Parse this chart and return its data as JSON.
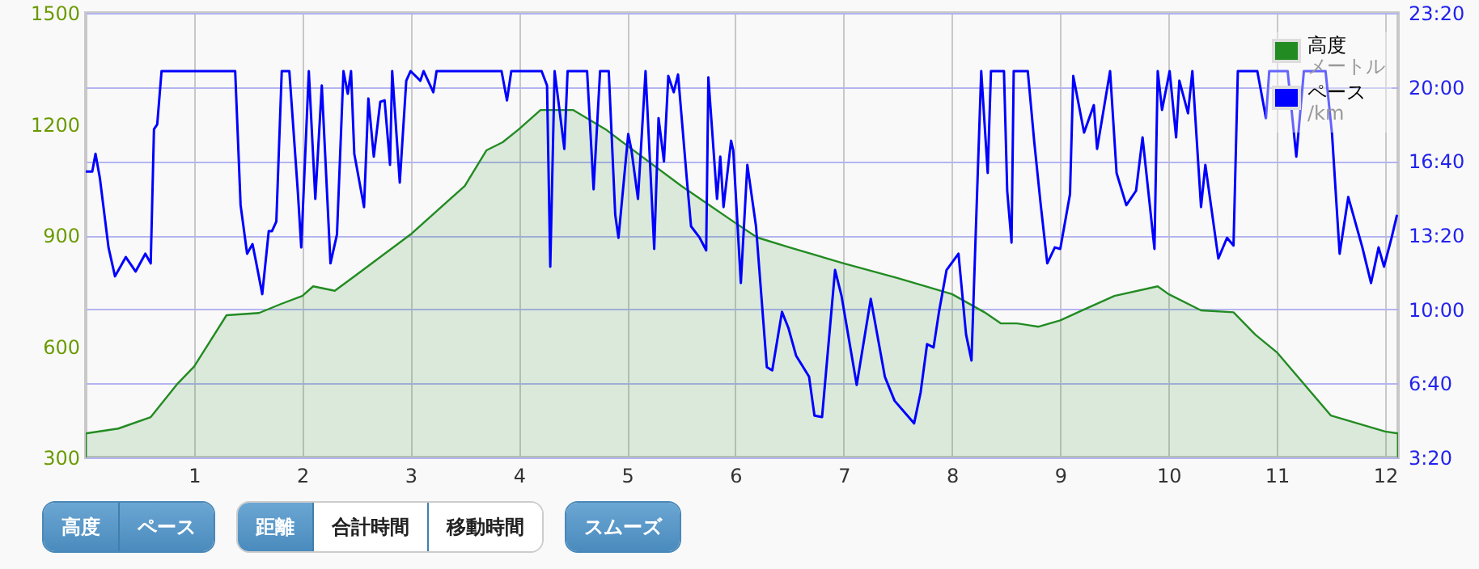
{
  "chart_data": {
    "type": "area",
    "xlim": [
      0,
      12.12
    ],
    "xticks": [
      1,
      2,
      3,
      4,
      5,
      6,
      7,
      8,
      9,
      10,
      11,
      12
    ],
    "ylim": [
      300,
      1500
    ],
    "yticks": [
      300,
      600,
      900,
      1200,
      1500
    ],
    "y2lim": [
      200,
      1400
    ],
    "y2ticks": [
      {
        "value": 200,
        "label": "3:20"
      },
      {
        "value": 400,
        "label": "6:40"
      },
      {
        "value": 600,
        "label": "10:00"
      },
      {
        "value": 800,
        "label": "13:20"
      },
      {
        "value": 1000,
        "label": "16:40"
      },
      {
        "value": 1200,
        "label": "20:00"
      },
      {
        "value": 1400,
        "label": "23:20"
      }
    ],
    "grid": true,
    "legend": "top right",
    "marker": "none",
    "annotations": [
      "高度",
      "ペース",
      "距離",
      "合計時間",
      "移動時間",
      "スムーズ",
      "メートル",
      "/km"
    ],
    "series": [
      {
        "name": "高度",
        "color": "#228b22",
        "x": [
          0,
          0.3,
          0.6,
          0.85,
          1.0,
          1.3,
          1.6,
          1.8,
          2.0,
          2.1,
          2.3,
          2.5,
          3.0,
          3.5,
          3.7,
          3.85,
          4.0,
          4.2,
          4.5,
          4.8,
          5.0,
          5.5,
          6.0,
          6.2,
          6.5,
          7.0,
          7.5,
          8.0,
          8.3,
          8.45,
          8.6,
          8.8,
          9.0,
          9.2,
          9.5,
          9.9,
          10.0,
          10.3,
          10.6,
          10.8,
          11.0,
          11.5,
          12.0,
          12.12
        ],
        "values": [
          365,
          378,
          409,
          500,
          545,
          684,
          690,
          714,
          736,
          762,
          750,
          793,
          902,
          1033,
          1129,
          1151,
          1186,
          1238,
          1238,
          1186,
          1142,
          1033,
          933,
          894,
          867,
          824,
          784,
          741,
          692,
          662,
          662,
          653,
          670,
          697,
          736,
          762,
          741,
          697,
          692,
          632,
          584,
          413,
          370,
          365
        ]
      },
      {
        "name": "ペース",
        "type": "line",
        "axis": "y2",
        "color": "#0000ff",
        "x": [
          0,
          0.06,
          0.09,
          0.13,
          0.21,
          0.27,
          0.37,
          0.46,
          0.55,
          0.6,
          0.63,
          0.66,
          0.7,
          1.38,
          1.43,
          1.49,
          1.54,
          1.57,
          1.63,
          1.69,
          1.72,
          1.76,
          1.81,
          1.88,
          1.96,
          1.99,
          2.06,
          2.12,
          2.18,
          2.26,
          2.32,
          2.38,
          2.42,
          2.45,
          2.48,
          2.57,
          2.61,
          2.66,
          2.72,
          2.76,
          2.81,
          2.83,
          2.9,
          2.96,
          3.0,
          3.09,
          3.12,
          3.21,
          3.24,
          3.84,
          3.89,
          3.93,
          4.21,
          4.26,
          4.29,
          4.33,
          4.42,
          4.45,
          4.63,
          4.69,
          4.75,
          4.83,
          4.89,
          4.92,
          5.01,
          5.04,
          5.1,
          5.17,
          5.25,
          5.29,
          5.34,
          5.38,
          5.43,
          5.47,
          5.55,
          5.59,
          5.67,
          5.73,
          5.75,
          5.83,
          5.86,
          5.89,
          5.96,
          5.98,
          6.05,
          6.11,
          6.19,
          6.29,
          6.34,
          6.43,
          6.49,
          6.56,
          6.68,
          6.73,
          6.8,
          6.92,
          6.98,
          7.12,
          7.25,
          7.38,
          7.47,
          7.65,
          7.71,
          7.77,
          7.83,
          7.88,
          7.95,
          8.06,
          8.13,
          8.18,
          8.22,
          8.27,
          8.33,
          8.36,
          8.48,
          8.51,
          8.55,
          8.57,
          8.7,
          8.76,
          8.82,
          8.88,
          8.95,
          9.0,
          9.09,
          9.12,
          9.22,
          9.31,
          9.34,
          9.46,
          9.52,
          9.61,
          9.7,
          9.76,
          9.87,
          9.9,
          9.94,
          10.01,
          10.07,
          10.1,
          10.18,
          10.22,
          10.3,
          10.34,
          10.46,
          10.54,
          10.6,
          10.64,
          10.82,
          10.9,
          10.93,
          11.1,
          11.18,
          11.25,
          11.45,
          11.51,
          11.58,
          11.66,
          11.79,
          11.87,
          11.94,
          11.99,
          12.06,
          12.11
        ],
        "values": [
          972,
          972,
          1020,
          955,
          767,
          689,
          741,
          702,
          750,
          724,
          1086,
          1099,
          1243,
          1243,
          881,
          750,
          776,
          732,
          641,
          811,
          811,
          837,
          1243,
          1243,
          911,
          767,
          1243,
          898,
          1204,
          724,
          802,
          1243,
          1182,
          1243,
          1020,
          876,
          1169,
          1012,
          1160,
          1164,
          990,
          1243,
          942,
          1217,
          1243,
          1217,
          1243,
          1186,
          1243,
          1243,
          1164,
          1243,
          1243,
          1204,
          715,
          1243,
          1033,
          1243,
          1243,
          924,
          1243,
          1243,
          855,
          793,
          1073,
          1029,
          898,
          1243,
          763,
          1116,
          999,
          1230,
          1186,
          1234,
          955,
          824,
          793,
          759,
          1226,
          898,
          1012,
          876,
          1055,
          1029,
          671,
          990,
          824,
          444,
          435,
          593,
          549,
          475,
          418,
          313,
          309,
          706,
          636,
          396,
          628,
          418,
          353,
          292,
          375,
          506,
          497,
          593,
          706,
          750,
          532,
          462,
          811,
          1243,
          968,
          1243,
          1243,
          920,
          780,
          1243,
          1243,
          1051,
          881,
          724,
          767,
          763,
          911,
          1230,
          1077,
          1151,
          1033,
          1243,
          968,
          881,
          920,
          1064,
          763,
          1243,
          1138,
          1243,
          1064,
          1217,
          1129,
          1243,
          876,
          990,
          737,
          793,
          772,
          1243,
          1243,
          1116,
          1243,
          1243,
          1012,
          1243,
          1243,
          1073,
          750,
          903,
          767,
          671,
          767,
          715,
          793,
          855
        ]
      }
    ]
  }
}
